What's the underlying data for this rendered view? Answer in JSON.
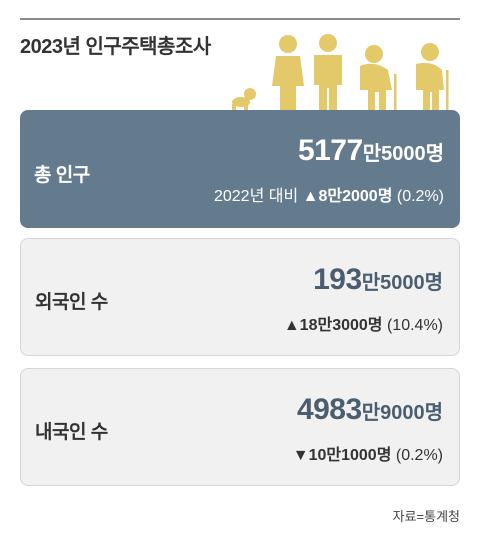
{
  "title": "2023년 인구주택총조사",
  "source": "자료=통계청",
  "colors": {
    "accent_card": "#647b8e",
    "figure": "#e3c96a",
    "number": "#4a5e70"
  },
  "cards": {
    "total": {
      "label": "총 인구",
      "value_big": "5177",
      "value_unit1": "만",
      "value_small": "5000",
      "value_unit2": "명",
      "compare_prefix": "2022년 대비",
      "change_arrow": "▲",
      "change_value": "8만2000명",
      "change_pct": "(0.2%)"
    },
    "foreign": {
      "label": "외국인 수",
      "value_big": "193",
      "value_unit1": "만",
      "value_small": "5000",
      "value_unit2": "명",
      "change_arrow": "▲",
      "change_value": "18만3000명",
      "change_pct": "(10.4%)"
    },
    "native": {
      "label": "내국인 수",
      "value_big": "4983",
      "value_unit1": "만",
      "value_small": "9000",
      "value_unit2": "명",
      "change_arrow": "▼",
      "change_value": "10만1000명",
      "change_pct": "(0.2%)"
    }
  }
}
